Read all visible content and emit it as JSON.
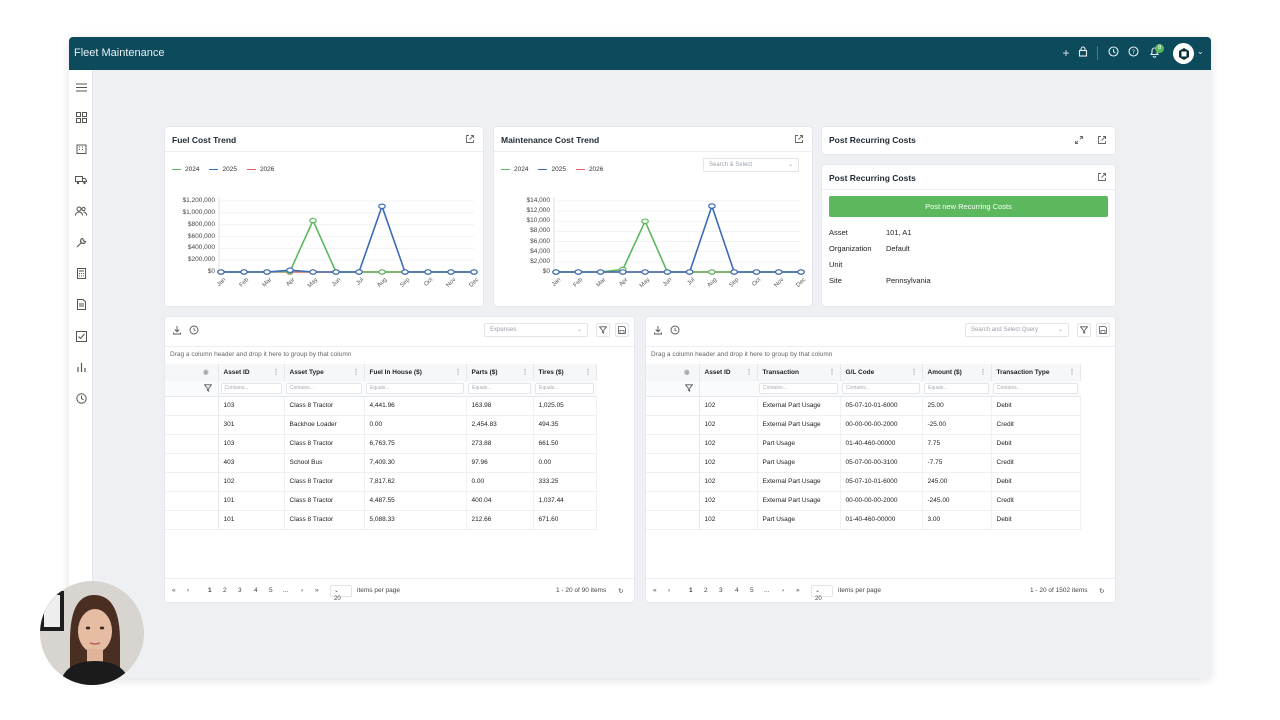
{
  "app": {
    "title": "Fleet Maintenance",
    "notifications": "8"
  },
  "colors": {
    "topbar": "#0d4a5c",
    "accent": "#5cb85c",
    "series2024": "#5cb85c",
    "series2025": "#3b6cb7",
    "series2026": "#e06666"
  },
  "fuel": {
    "title": "Fuel Cost Trend",
    "chart_data": {
      "type": "line",
      "categories": [
        "Jan",
        "Feb",
        "Mar",
        "Apr",
        "May",
        "Jun",
        "Jul",
        "Aug",
        "Sep",
        "Oct",
        "Nov",
        "Dec"
      ],
      "series": [
        {
          "name": "2024",
          "values": [
            0,
            0,
            0,
            10000,
            870000,
            0,
            0,
            0,
            0,
            0,
            0,
            0
          ]
        },
        {
          "name": "2025",
          "values": [
            0,
            0,
            0,
            30000,
            0,
            0,
            0,
            1110000,
            0,
            0,
            0,
            0
          ]
        },
        {
          "name": "2026",
          "values": [
            0,
            0,
            0,
            0,
            0,
            0,
            0,
            0,
            0,
            0,
            0,
            0
          ]
        }
      ],
      "ylim": [
        0,
        1200000
      ],
      "yticks": [
        "$1,200,000",
        "$1,000,000",
        "$800,000",
        "$600,000",
        "$400,000",
        "$200,000",
        "$0"
      ]
    }
  },
  "maint": {
    "title": "Maintenance Cost Trend",
    "filter_placeholder": "Search & Select",
    "chart_data": {
      "type": "line",
      "categories": [
        "Jan",
        "Feb",
        "Mar",
        "Apr",
        "May",
        "Jun",
        "Jul",
        "Aug",
        "Sep",
        "Oct",
        "Nov",
        "Dec"
      ],
      "series": [
        {
          "name": "2024",
          "values": [
            0,
            0,
            0,
            500,
            10000,
            0,
            0,
            0,
            0,
            0,
            0,
            0
          ]
        },
        {
          "name": "2025",
          "values": [
            0,
            0,
            0,
            0,
            0,
            0,
            0,
            13000,
            0,
            0,
            0,
            0
          ]
        },
        {
          "name": "2026",
          "values": [
            0,
            0,
            0,
            0,
            0,
            0,
            0,
            0,
            0,
            0,
            0,
            0
          ]
        }
      ],
      "ylim": [
        0,
        14000
      ],
      "yticks": [
        "$14,000",
        "$12,000",
        "$10,000",
        "$8,000",
        "$6,000",
        "$4,000",
        "$2,000",
        "$0"
      ]
    }
  },
  "recurring_collapsed": {
    "title": "Post Recurring Costs"
  },
  "recurring": {
    "title": "Post Recurring Costs",
    "button": "Post new Recurring Costs",
    "fields": [
      {
        "key": "Asset",
        "value": "101, A1"
      },
      {
        "key": "Organization",
        "value": "Default"
      },
      {
        "key": "Unit",
        "value": ""
      },
      {
        "key": "Site",
        "value": "Pennsylvania"
      }
    ]
  },
  "grid1": {
    "dropdown": "Expenses",
    "group_hint": "Drag a column header and drop it here to group by that column",
    "columns": [
      "Asset ID",
      "Asset Type",
      "Fuel In House ($)",
      "Parts ($)",
      "Tires ($)"
    ],
    "filters": [
      "Contains...",
      "Contains...",
      "Equals...",
      "Equals...",
      "Equals..."
    ],
    "rows": [
      [
        "103",
        "Class 8 Tractor",
        "4,441.96",
        "163.98",
        "1,025.05"
      ],
      [
        "301",
        "Backhoe Loader",
        "0.00",
        "2,454.83",
        "494.35"
      ],
      [
        "103",
        "Class 8 Tractor",
        "6,763.75",
        "273.88",
        "661.50"
      ],
      [
        "403",
        "School Bus",
        "7,409.30",
        "97.96",
        "0.00"
      ],
      [
        "102",
        "Class 8 Tractor",
        "7,817.62",
        "0.00",
        "333.25"
      ],
      [
        "101",
        "Class 8 Tractor",
        "4,487.55",
        "400.04",
        "1,037.44"
      ],
      [
        "101",
        "Class 8 Tractor",
        "5,088.33",
        "212.66",
        "671.60"
      ]
    ],
    "pager": {
      "pages": [
        "1",
        "2",
        "3",
        "4",
        "5",
        "..."
      ],
      "size": "20",
      "size_label": "items per page",
      "summary": "1 - 20 of 90 items"
    }
  },
  "grid2": {
    "dropdown": "Search and Select Query",
    "group_hint": "Drag a column header and drop it here to group by that column",
    "columns": [
      "Asset ID",
      "Transaction",
      "G/L Code",
      "Amount ($)",
      "Transaction Type"
    ],
    "filters": [
      "",
      "Contains...",
      "Contains...",
      "Equals...",
      "Contains..."
    ],
    "rows": [
      [
        "102",
        "External Part Usage",
        "05-07-10-01-6000",
        "25.00",
        "Debit"
      ],
      [
        "102",
        "External Part Usage",
        "00-00-00-00-2000",
        "-25.00",
        "Credit"
      ],
      [
        "102",
        "Part Usage",
        "01-40-460-00000",
        "7.75",
        "Debit"
      ],
      [
        "102",
        "Part Usage",
        "05-07-00-00-3100",
        "-7.75",
        "Credit"
      ],
      [
        "102",
        "External Part Usage",
        "05-07-10-01-6000",
        "245.00",
        "Debit"
      ],
      [
        "102",
        "External Part Usage",
        "00-00-00-00-2000",
        "-245.00",
        "Credit"
      ],
      [
        "102",
        "Part Usage",
        "01-40-460-00000",
        "3.00",
        "Debit"
      ]
    ],
    "pager": {
      "pages": [
        "1",
        "2",
        "3",
        "4",
        "5",
        "..."
      ],
      "size": "20",
      "size_label": "items per page",
      "summary": "1 - 20 of 1502 items"
    }
  }
}
